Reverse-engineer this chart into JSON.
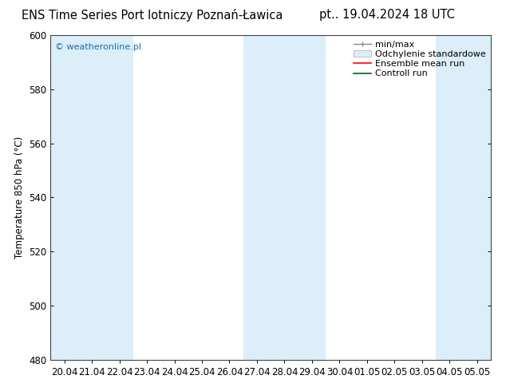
{
  "title_left": "ENS Time Series Port lotniczy Poznań-Ławica",
  "title_right": "pt.. 19.04.2024 18 UTC",
  "ylabel": "Temperature 850 hPa (°C)",
  "ylim": [
    480,
    600
  ],
  "yticks": [
    480,
    500,
    520,
    540,
    560,
    580,
    600
  ],
  "x_labels": [
    "20.04",
    "21.04",
    "22.04",
    "23.04",
    "24.04",
    "25.04",
    "26.04",
    "27.04",
    "28.04",
    "29.04",
    "30.04",
    "01.05",
    "02.05",
    "03.05",
    "04.05",
    "05.05"
  ],
  "watermark": "© weatheronline.pl",
  "watermark_color": "#1a6bb5",
  "bg_color": "#ffffff",
  "plot_bg_color": "#ffffff",
  "shaded_color": "#dceef9",
  "shaded_bands": [
    0,
    1,
    2,
    7,
    8,
    9,
    14,
    15
  ],
  "legend_entries": [
    {
      "label": "min/max",
      "color": "#aaaaaa",
      "type": "errorbar"
    },
    {
      "label": "Odchylenie standardowe",
      "color": "#c8dff0",
      "type": "box"
    },
    {
      "label": "Ensemble mean run",
      "color": "#ff0000",
      "type": "line"
    },
    {
      "label": "Controll run",
      "color": "#006600",
      "type": "line"
    }
  ],
  "title_fontsize": 10.5,
  "tick_fontsize": 8.5,
  "ylabel_fontsize": 8.5,
  "legend_fontsize": 8
}
